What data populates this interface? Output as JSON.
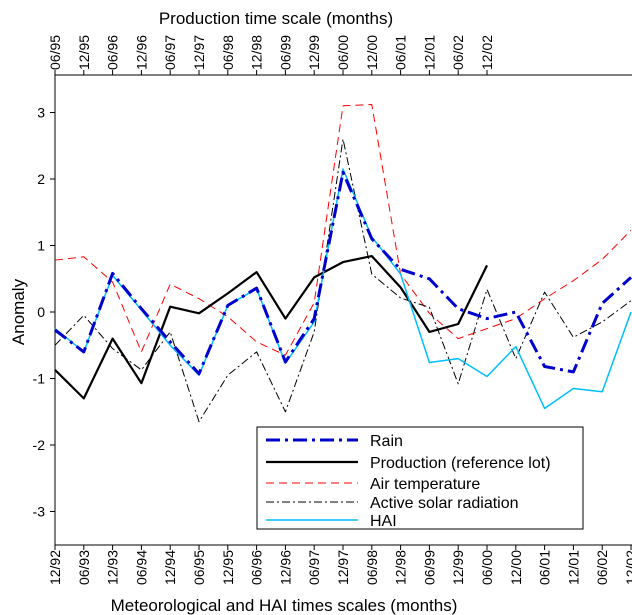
{
  "chart_data": {
    "type": "line",
    "top_axis_title": "Production time scale (months)",
    "bottom_axis_title": "Meteorological and HAI times scales (months)",
    "ylabel": "Anomaly",
    "ylim": [
      -3.5,
      3.5
    ],
    "yticks": [
      -3,
      -2,
      -1,
      0,
      1,
      2,
      3
    ],
    "top_ticks": [
      "06/95",
      "12/95",
      "06/96",
      "12/96",
      "06/97",
      "12/97",
      "06/98",
      "12/98",
      "06/99",
      "12/99",
      "06/00",
      "12/00",
      "06/01",
      "12/01",
      "06/02",
      "12/02"
    ],
    "bottom_ticks": [
      "12/92",
      "06/93",
      "12/93",
      "06/94",
      "12/94",
      "06/95",
      "12/95",
      "06/96",
      "12/96",
      "06/97",
      "12/97",
      "06/98",
      "12/98",
      "06/99",
      "12/99",
      "06/00",
      "12/00",
      "06/01",
      "12/01",
      "06/02",
      "12/02"
    ],
    "grid": false,
    "legend_position": "bottom-right",
    "series": [
      {
        "name": "Rain",
        "color": "#0000cc",
        "style": "dashdot-thick",
        "values": [
          -0.27,
          -0.6,
          0.58,
          0.05,
          -0.45,
          -0.93,
          0.1,
          0.36,
          -0.75,
          -0.1,
          2.1,
          1.1,
          0.64,
          0.5,
          0.05,
          -0.1,
          0.0,
          -0.82,
          -0.9,
          0.13,
          0.52
        ]
      },
      {
        "name": "Production (reference lot)",
        "color": "#000000",
        "style": "solid",
        "values": [
          -0.87,
          -1.3,
          -0.4,
          -1.07,
          0.08,
          -0.02,
          0.28,
          0.6,
          -0.1,
          0.52,
          0.75,
          0.84,
          0.37,
          -0.3,
          -0.18,
          0.7
        ]
      },
      {
        "name": "Air temperature",
        "color": "#ff0000",
        "style": "dashed",
        "values": [
          0.78,
          0.83,
          0.45,
          -0.6,
          0.42,
          0.2,
          -0.07,
          -0.45,
          -0.65,
          0.14,
          3.1,
          3.12,
          0.57,
          -0.02,
          -0.4,
          -0.25,
          -0.1,
          0.2,
          0.47,
          0.79,
          1.23
        ]
      },
      {
        "name": "Active solar radiation",
        "color": "#000000",
        "style": "dashdot-thin",
        "values": [
          -0.5,
          -0.05,
          -0.55,
          -0.87,
          -0.3,
          -1.65,
          -0.95,
          -0.6,
          -1.5,
          -0.3,
          2.6,
          0.57,
          0.21,
          0.07,
          -1.08,
          0.34,
          -0.7,
          0.3,
          -0.38,
          -0.15,
          0.17
        ]
      },
      {
        "name": "HAI",
        "color": "#00bfff",
        "style": "solid",
        "values": [
          -0.25,
          -0.6,
          0.55,
          0.03,
          -0.5,
          -0.95,
          0.1,
          0.35,
          -0.77,
          -0.15,
          2.15,
          1.13,
          0.57,
          -0.76,
          -0.7,
          -0.97,
          -0.52,
          -1.45,
          -1.15,
          -1.2,
          0.0
        ]
      }
    ]
  }
}
